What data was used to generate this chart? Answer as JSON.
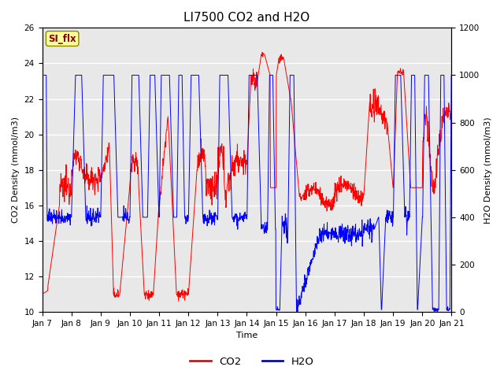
{
  "title": "LI7500 CO2 and H2O",
  "xlabel": "Time",
  "ylabel_left": "CO2 Density (mmol/m3)",
  "ylabel_right": "H2O Density (mmol/m3)",
  "ylim_left": [
    10,
    26
  ],
  "ylim_right": [
    0,
    1200
  ],
  "yticks_left": [
    10,
    12,
    14,
    16,
    18,
    20,
    22,
    24,
    26
  ],
  "yticks_right": [
    0,
    200,
    400,
    600,
    800,
    1000,
    1200
  ],
  "xtick_labels": [
    "Jan 7",
    "Jan 8",
    "Jan 9",
    "Jan 10",
    "Jan 11",
    "Jan 12",
    "Jan 13",
    "Jan 14",
    "Jan 15",
    "Jan 16",
    "Jan 17",
    "Jan 18",
    "Jan 19",
    "Jan 20",
    "Jan 21"
  ],
  "legend_labels": [
    "CO2",
    "H2O"
  ],
  "annotation_text": "SI_flx",
  "annotation_color": "#8B0000",
  "annotation_bg": "#FFFF99",
  "background_color": "#E8E8E8",
  "grid_color": "white",
  "title_fontsize": 11,
  "axis_fontsize": 8,
  "tick_fontsize": 7.5
}
